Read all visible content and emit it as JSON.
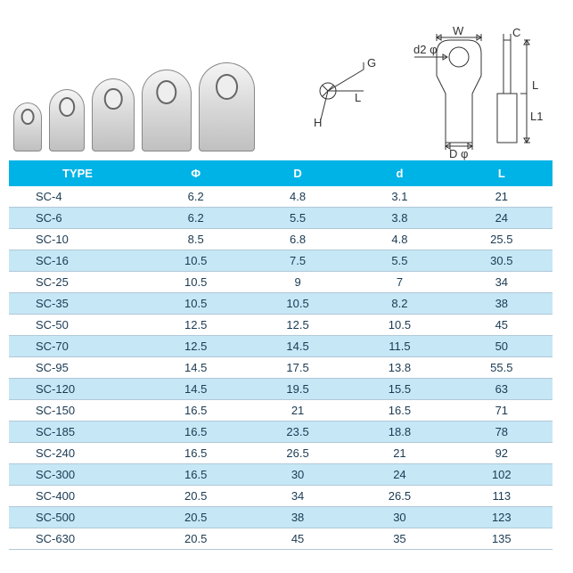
{
  "diagram": {
    "angle_labels": {
      "G": "G",
      "L": "L",
      "H": "H"
    },
    "lug_labels": {
      "W": "W",
      "C": "C",
      "d2": "d2 φ",
      "L": "L",
      "L1": "L1",
      "D": "D φ"
    }
  },
  "table": {
    "header_bg": "#00b3e6",
    "row_alt_bg": "#c6e7f5",
    "text_color": "#1a3a52",
    "columns": [
      "TYPE",
      "Φ",
      "D",
      "d",
      "L"
    ],
    "rows": [
      [
        "SC-4",
        "6.2",
        "4.8",
        "3.1",
        "21"
      ],
      [
        "SC-6",
        "6.2",
        "5.5",
        "3.8",
        "24"
      ],
      [
        "SC-10",
        "8.5",
        "6.8",
        "4.8",
        "25.5"
      ],
      [
        "SC-16",
        "10.5",
        "7.5",
        "5.5",
        "30.5"
      ],
      [
        "SC-25",
        "10.5",
        "9",
        "7",
        "34"
      ],
      [
        "SC-35",
        "10.5",
        "10.5",
        "8.2",
        "38"
      ],
      [
        "SC-50",
        "12.5",
        "12.5",
        "10.5",
        "45"
      ],
      [
        "SC-70",
        "12.5",
        "14.5",
        "11.5",
        "50"
      ],
      [
        "SC-95",
        "14.5",
        "17.5",
        "13.8",
        "55.5"
      ],
      [
        "SC-120",
        "14.5",
        "19.5",
        "15.5",
        "63"
      ],
      [
        "SC-150",
        "16.5",
        "21",
        "16.5",
        "71"
      ],
      [
        "SC-185",
        "16.5",
        "23.5",
        "18.8",
        "78"
      ],
      [
        "SC-240",
        "16.5",
        "26.5",
        "21",
        "92"
      ],
      [
        "SC-300",
        "16.5",
        "30",
        "24",
        "102"
      ],
      [
        "SC-400",
        "20.5",
        "34",
        "26.5",
        "113"
      ],
      [
        "SC-500",
        "20.5",
        "38",
        "30",
        "123"
      ],
      [
        "SC-630",
        "20.5",
        "45",
        "35",
        "135"
      ]
    ]
  }
}
